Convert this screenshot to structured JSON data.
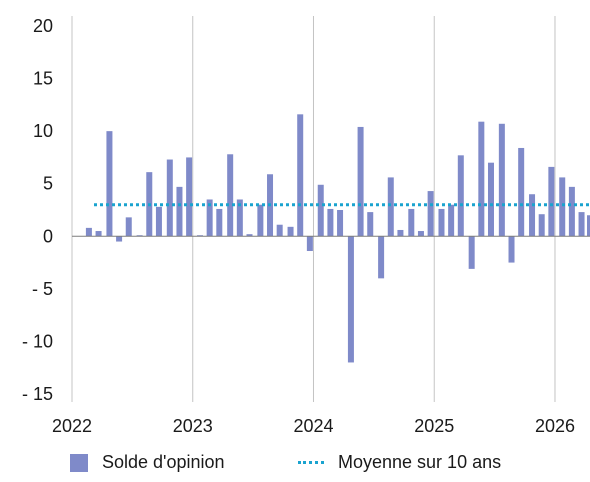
{
  "chart_data": {
    "type": "bar",
    "x_ticks": [
      "2022",
      "2023",
      "2024",
      "2025",
      "2026"
    ],
    "y_ticks": [
      "20",
      "15",
      "10",
      "5",
      "0",
      "- 5",
      "- 10",
      "- 15"
    ],
    "ylim": [
      -15,
      20
    ],
    "xlim": [
      2022.0,
      2026.29
    ],
    "grid": "vertical at year ticks",
    "legend_position": "bottom",
    "bar_color": "#7f8ac9",
    "reference_color": "#1aa3cf",
    "series": [
      {
        "name": "Solde d'opinion",
        "x": [
          2022.14,
          2022.22,
          2022.31,
          2022.39,
          2022.47,
          2022.56,
          2022.64,
          2022.72,
          2022.81,
          2022.89,
          2022.97,
          2023.06,
          2023.14,
          2023.22,
          2023.31,
          2023.39,
          2023.47,
          2023.56,
          2023.64,
          2023.72,
          2023.81,
          2023.89,
          2023.97,
          2024.06,
          2024.14,
          2024.22,
          2024.31,
          2024.39,
          2024.47,
          2024.56,
          2024.64,
          2024.72,
          2024.81,
          2024.89,
          2024.97,
          2025.06,
          2025.14,
          2025.22,
          2025.31,
          2025.39,
          2025.47,
          2025.56,
          2025.64,
          2025.72,
          2025.81,
          2025.89,
          2025.97,
          2026.06,
          2026.14,
          2026.22,
          2026.29
        ],
        "values": [
          0.8,
          0.5,
          10.0,
          -0.5,
          1.8,
          0.1,
          6.1,
          2.8,
          7.3,
          4.7,
          7.5,
          0.1,
          3.5,
          2.6,
          7.8,
          3.5,
          0.2,
          3.0,
          5.9,
          1.1,
          0.9,
          11.6,
          -1.4,
          4.9,
          2.6,
          2.5,
          -12.0,
          10.4,
          2.3,
          -4.0,
          5.6,
          0.6,
          2.6,
          0.5,
          4.3,
          2.6,
          3.0,
          7.7,
          -3.1,
          10.9,
          7.0,
          10.7,
          -2.5,
          8.4,
          4.0,
          2.1,
          6.6,
          5.6,
          4.7,
          2.3,
          2.0
        ]
      },
      {
        "name": "Moyenne sur 10 ans",
        "type": "reference-line",
        "value": 3.0
      }
    ]
  }
}
